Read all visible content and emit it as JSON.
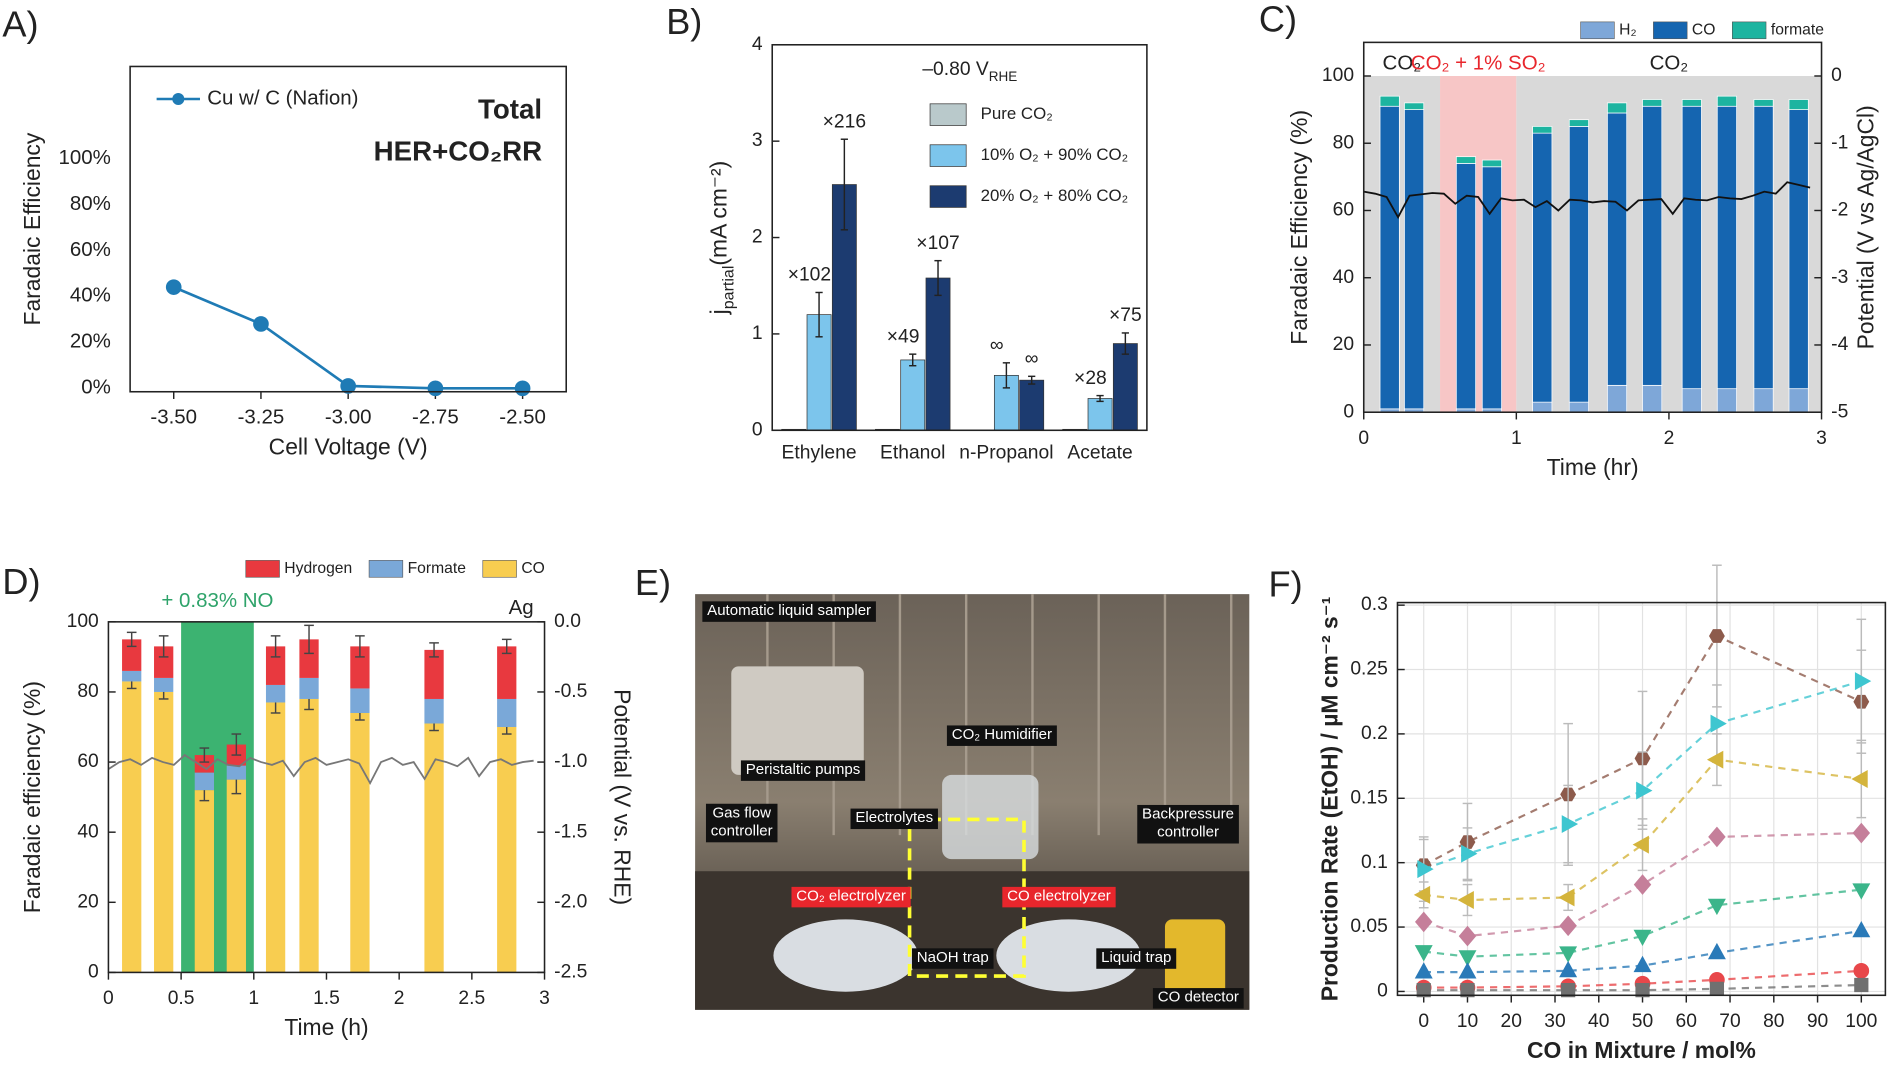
{
  "chart_data": [
    {
      "type": "line",
      "panel": "A)",
      "xlabel": "Cell Voltage (V)",
      "ylabel": "Faradaic Efficiency",
      "annotations": [
        "Total",
        "HER+CO₂RR"
      ],
      "x": [
        -3.5,
        -3.25,
        -3.0,
        -2.75,
        -2.5
      ],
      "series": [
        {
          "name": "Cu w/ C (Nafion)",
          "color": "#1f7bb5",
          "marker": "circle",
          "values": [
            44,
            28,
            1,
            0,
            0
          ]
        }
      ],
      "xlim": [
        -3.625,
        -2.375
      ],
      "xticks": [
        {
          "value": -3.5,
          "label": "-3.50"
        },
        {
          "value": -3.25,
          "label": "-3.25"
        },
        {
          "value": -3.0,
          "label": "-3.00"
        },
        {
          "value": -2.75,
          "label": "-2.75"
        },
        {
          "value": -2.5,
          "label": "-2.50"
        }
      ],
      "ylim": [
        -1.5,
        140
      ],
      "yticks": [
        {
          "value": 0,
          "label": "0%"
        },
        {
          "value": 20,
          "label": "20%"
        },
        {
          "value": 40,
          "label": "40%"
        },
        {
          "value": 60,
          "label": "60%"
        },
        {
          "value": 80,
          "label": "80%"
        },
        {
          "value": 100,
          "label": "100%"
        }
      ],
      "grid": false
    },
    {
      "type": "bar",
      "panel": "B)",
      "title": {
        "main": "–0.80 V",
        "sub": "RHE"
      },
      "ylabel": {
        "main": "j",
        "sub": "partial",
        "rest": "(mA cm⁻²)"
      },
      "categories": [
        "Ethylene",
        "Ethanol",
        "n-Propanol",
        "Acetate"
      ],
      "series": [
        {
          "name": "Pure CO₂",
          "color": "#b9c9cb",
          "values": [
            0.01,
            0.01,
            0,
            0.01
          ]
        },
        {
          "name": "10% O₂ + 90% CO₂",
          "color": "#7cc5ec",
          "values": [
            1.2,
            0.73,
            0.57,
            0.33
          ],
          "errors": [
            0.23,
            0.06,
            0.13,
            0.03
          ],
          "labels": [
            "×102",
            "×49",
            "∞",
            "×28"
          ]
        },
        {
          "name": "20% O₂ + 80% CO₂",
          "color": "#1c3b70",
          "values": [
            2.55,
            1.58,
            0.52,
            0.9
          ],
          "errors": [
            0.47,
            0.18,
            0.04,
            0.11
          ],
          "labels": [
            "×216",
            "×107",
            "∞",
            "×75"
          ]
        }
      ],
      "ylim": [
        0,
        4
      ],
      "yticks": [
        0,
        1,
        2,
        3,
        4
      ],
      "grid": false
    },
    {
      "type": "bar",
      "stacked": true,
      "panel": "C)",
      "xlabel": "Time (hr)",
      "ylabel": "Faradaic Efficiency (%)",
      "y2label": "Potential (V vs Ag/AgCl)",
      "regions": [
        {
          "from": 0,
          "to": 0.5,
          "label": "CO₂",
          "color": "#d9d9d9",
          "label_color": "#222"
        },
        {
          "from": 0.5,
          "to": 1,
          "label": "CO₂ + 1% SO₂",
          "color": "#f7c6c6",
          "label_color": "#e8262c"
        },
        {
          "from": 1,
          "to": 3,
          "label": "CO₂",
          "color": "#d9d9d9",
          "label_color": "#222"
        }
      ],
      "x": [
        0.17,
        0.33,
        0.67,
        0.84,
        1.17,
        1.41,
        1.66,
        1.89,
        2.15,
        2.38,
        2.62,
        2.85
      ],
      "series": [
        {
          "name": "H₂",
          "color": "#7ea7d8",
          "values": [
            1,
            1,
            1,
            1,
            3,
            3,
            8,
            8,
            7,
            7,
            7,
            7
          ]
        },
        {
          "name": "CO",
          "color": "#1565b0",
          "values": [
            90,
            89,
            73,
            72,
            80,
            82,
            81,
            83,
            84,
            84,
            84,
            83
          ]
        },
        {
          "name": "formate",
          "color": "#1db4a0",
          "values": [
            3,
            2,
            2,
            2,
            2,
            2,
            3,
            2,
            2,
            3,
            2,
            3
          ]
        },
        {
          "axis": "y2",
          "color": "#111111",
          "x": [
            0,
            0.075,
            0.15,
            0.225,
            0.3,
            0.375,
            0.45,
            0.525,
            0.6,
            0.675,
            0.75,
            0.825,
            0.9,
            0.975,
            1.05,
            1.125,
            1.2,
            1.275,
            1.35,
            1.425,
            1.5,
            1.575,
            1.65,
            1.725,
            1.8,
            1.875,
            1.95,
            2.025,
            2.1,
            2.175,
            2.25,
            2.325,
            2.4,
            2.475,
            2.55,
            2.625,
            2.7,
            2.775,
            2.85,
            2.925
          ],
          "values": [
            -1.72,
            -1.75,
            -1.8,
            -2.1,
            -1.78,
            -1.76,
            -1.74,
            -1.75,
            -1.9,
            -1.78,
            -1.8,
            -2.05,
            -1.82,
            -1.85,
            -1.84,
            -1.95,
            -1.86,
            -2.0,
            -1.84,
            -1.85,
            -1.88,
            -1.86,
            -1.87,
            -2.0,
            -1.85,
            -1.84,
            -1.83,
            -2.05,
            -1.82,
            -1.84,
            -1.85,
            -1.8,
            -1.82,
            -1.83,
            -1.78,
            -1.72,
            -1.75,
            -1.58,
            -1.62,
            -1.66
          ]
        }
      ],
      "xlim": [
        0,
        3
      ],
      "xticks": [
        0,
        1,
        2,
        3
      ],
      "ylim": [
        0,
        110
      ],
      "yticks": [
        0,
        20,
        40,
        60,
        80,
        100
      ],
      "y2lim": [
        -5,
        0.5
      ],
      "y2ticks": [
        0,
        -1,
        -2,
        -3,
        -4,
        -5
      ],
      "grid": false
    },
    {
      "type": "bar",
      "stacked": true,
      "panel": "D)",
      "xlabel": "Time (h)",
      "ylabel": "Faradaic efficiency (%)",
      "y2label": "Potential (V vs. RHE)",
      "annotations": [
        "Ag"
      ],
      "legend_reverse": true,
      "regions": [
        {
          "from": 0.5,
          "to": 1,
          "label": "+ 0.83% NO",
          "color": "#3cb371",
          "label_color": "#2ea36a"
        }
      ],
      "x": [
        0.16,
        0.38,
        0.66,
        0.88,
        1.15,
        1.38,
        1.73,
        2.24,
        2.74
      ],
      "series": [
        {
          "name": "CO",
          "color": "#f8cd50",
          "values": [
            83,
            80,
            52,
            55,
            77,
            78,
            74,
            71,
            70
          ],
          "errors": [
            2,
            2,
            3,
            4,
            3,
            3,
            2,
            2,
            2
          ]
        },
        {
          "name": "Formate",
          "color": "#7aa8d8",
          "values": [
            3,
            4,
            5,
            4,
            5,
            6,
            7,
            7,
            8
          ]
        },
        {
          "name": "Hydrogen",
          "color": "#e8393f",
          "values": [
            9,
            9,
            5,
            6,
            11,
            11,
            12,
            14,
            15
          ],
          "errors": [
            2,
            3,
            2,
            3,
            3,
            4,
            3,
            2,
            2
          ]
        },
        {
          "axis": "y2",
          "color": "#777777",
          "x": [
            0,
            0.075,
            0.15,
            0.225,
            0.3,
            0.375,
            0.45,
            0.525,
            0.6,
            0.675,
            0.75,
            0.825,
            0.9,
            0.975,
            1.05,
            1.125,
            1.2,
            1.275,
            1.35,
            1.425,
            1.5,
            1.575,
            1.65,
            1.725,
            1.8,
            1.875,
            1.95,
            2.025,
            2.1,
            2.175,
            2.25,
            2.325,
            2.4,
            2.475,
            2.55,
            2.625,
            2.7,
            2.775,
            2.85,
            2.925
          ],
          "values": [
            -1.05,
            -1.0,
            -0.98,
            -1.02,
            -0.97,
            -1.0,
            -1.02,
            -0.95,
            -1.0,
            -1.05,
            -0.98,
            -1.02,
            -1.03,
            -0.97,
            -1.0,
            -1.02,
            -0.99,
            -1.1,
            -1.0,
            -0.97,
            -1.02,
            -1.0,
            -0.98,
            -1.01,
            -1.15,
            -1.0,
            -0.97,
            -1.02,
            -1.0,
            -1.12,
            -0.98,
            -1.0,
            -1.03,
            -0.97,
            -1.1,
            -1.0,
            -0.98,
            -1.02,
            -1.0,
            -0.99
          ]
        }
      ],
      "xlim": [
        0,
        3
      ],
      "xticks": [
        0,
        0.5,
        1,
        1.5,
        2,
        2.5,
        3
      ],
      "ylim": [
        0,
        100
      ],
      "yticks": [
        0,
        20,
        40,
        60,
        80,
        100
      ],
      "y2lim": [
        -2.5,
        0
      ],
      "y2ticks": [
        {
          "value": 0,
          "label": "0.0"
        },
        -0.5,
        {
          "value": -1,
          "label": "-1.0"
        },
        -1.5,
        {
          "value": -2,
          "label": "-2.0"
        },
        -2.5
      ],
      "grid": false
    },
    {
      "type": "photo",
      "panel": "E)",
      "labels": [
        {
          "lines": [
            "Automatic liquid sampler"
          ],
          "color": "black"
        },
        {
          "lines": [
            "CO₂ Humidifier"
          ],
          "color": "black"
        },
        {
          "lines": [
            "Peristaltic pumps"
          ],
          "color": "black"
        },
        {
          "lines": [
            "Gas flow",
            "controller"
          ],
          "color": "black"
        },
        {
          "lines": [
            "Electrolytes"
          ],
          "color": "black"
        },
        {
          "lines": [
            "Backpressure",
            "controller"
          ],
          "color": "black"
        },
        {
          "lines": [
            "CO₂ electrolyzer"
          ],
          "color": "red"
        },
        {
          "lines": [
            "CO electrolyzer"
          ],
          "color": "red"
        },
        {
          "lines": [
            "NaOH trap"
          ],
          "color": "black"
        },
        {
          "lines": [
            "Liquid trap"
          ],
          "color": "black"
        },
        {
          "lines": [
            "CO detector"
          ],
          "color": "black"
        }
      ]
    },
    {
      "type": "line",
      "panel": "F)",
      "dashed": true,
      "xlabel": "CO in Mixture / mol%",
      "ylabel": "Production Rate (EtOH) / µM cm⁻² s⁻¹",
      "x": [
        0,
        10,
        33,
        50,
        67,
        100
      ],
      "series": [
        {
          "color": "#8d5b4c",
          "marker": "hexagon",
          "values": [
            0.098,
            0.116,
            0.153,
            0.181,
            0.276,
            0.225
          ],
          "errors": [
            0.02,
            0.03,
            0.055,
            0.052,
            0.055,
            0.04
          ]
        },
        {
          "color": "#3ec6d0",
          "marker": "triangle-right",
          "values": [
            0.095,
            0.107,
            0.13,
            0.156,
            0.208,
            0.241
          ],
          "errors": [
            0.025,
            0.02,
            0.03,
            0.03,
            0.03,
            0.048
          ]
        },
        {
          "color": "#d4b43c",
          "marker": "triangle-left",
          "values": [
            0.075,
            0.071,
            0.073,
            0.114,
            0.18,
            0.165
          ],
          "errors": [
            0.01,
            0.012,
            0.01,
            0.02,
            0.02,
            0.03
          ]
        },
        {
          "color": "#c57f9a",
          "marker": "diamond",
          "values": [
            0.054,
            0.043,
            0.051,
            0.083,
            0.12,
            0.123
          ]
        },
        {
          "color": "#3bb58a",
          "marker": "triangle-down",
          "values": [
            0.031,
            0.027,
            0.03,
            0.043,
            0.067,
            0.079
          ]
        },
        {
          "color": "#2a7ab8",
          "marker": "triangle-up",
          "values": [
            0.015,
            0.015,
            0.016,
            0.02,
            0.03,
            0.047
          ]
        },
        {
          "color": "#e8474a",
          "marker": "circle",
          "values": [
            0.003,
            0.003,
            0.004,
            0.006,
            0.009,
            0.016
          ]
        },
        {
          "color": "#707070",
          "marker": "square",
          "values": [
            0.001,
            0.001,
            0.001,
            0.001,
            0.002,
            0.005
          ]
        }
      ],
      "xlim": [
        -6,
        105.5
      ],
      "xticks": [
        0,
        10,
        20,
        30,
        40,
        50,
        60,
        70,
        80,
        90,
        100
      ],
      "ylim": [
        -0.003,
        0.302
      ],
      "yticks": [
        0,
        0.05,
        0.1,
        0.15,
        0.2,
        0.25,
        0.3
      ],
      "grid": true
    }
  ]
}
